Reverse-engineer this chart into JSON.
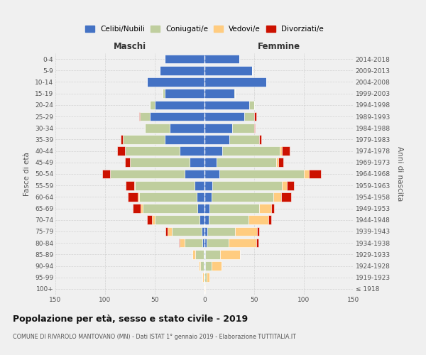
{
  "age_groups": [
    "100+",
    "95-99",
    "90-94",
    "85-89",
    "80-84",
    "75-79",
    "70-74",
    "65-69",
    "60-64",
    "55-59",
    "50-54",
    "45-49",
    "40-44",
    "35-39",
    "30-34",
    "25-29",
    "20-24",
    "15-19",
    "10-14",
    "5-9",
    "0-4"
  ],
  "birth_years": [
    "≤ 1918",
    "1919-1923",
    "1924-1928",
    "1929-1933",
    "1934-1938",
    "1939-1943",
    "1944-1948",
    "1949-1953",
    "1954-1958",
    "1959-1963",
    "1964-1968",
    "1969-1973",
    "1974-1978",
    "1979-1983",
    "1984-1988",
    "1989-1993",
    "1994-1998",
    "1999-2003",
    "2004-2008",
    "2009-2013",
    "2014-2018"
  ],
  "colors": {
    "celibe": "#4472C4",
    "coniugato": "#BFCE9E",
    "vedovo": "#FFCC80",
    "divorziato": "#CC1100"
  },
  "males": {
    "celibe": [
      0,
      0,
      1,
      1,
      2,
      3,
      5,
      7,
      8,
      10,
      20,
      15,
      25,
      40,
      35,
      55,
      50,
      40,
      58,
      45,
      40
    ],
    "coniugato": [
      0,
      1,
      3,
      8,
      18,
      30,
      45,
      55,
      58,
      60,
      75,
      60,
      55,
      42,
      25,
      10,
      5,
      2,
      0,
      0,
      0
    ],
    "vedovo": [
      0,
      1,
      2,
      3,
      5,
      4,
      3,
      2,
      1,
      1,
      0,
      0,
      0,
      0,
      0,
      0,
      0,
      0,
      0,
      0,
      0
    ],
    "divorziato": [
      0,
      0,
      0,
      0,
      1,
      2,
      5,
      8,
      10,
      8,
      8,
      5,
      8,
      2,
      0,
      1,
      0,
      0,
      0,
      0,
      0
    ]
  },
  "females": {
    "celibe": [
      0,
      0,
      1,
      1,
      2,
      3,
      4,
      5,
      7,
      8,
      15,
      12,
      18,
      25,
      28,
      40,
      45,
      30,
      62,
      48,
      35
    ],
    "coniugato": [
      0,
      2,
      6,
      15,
      22,
      28,
      40,
      50,
      62,
      70,
      85,
      60,
      58,
      30,
      22,
      10,
      5,
      1,
      0,
      0,
      0
    ],
    "vedovo": [
      1,
      3,
      10,
      20,
      28,
      22,
      20,
      12,
      8,
      5,
      5,
      2,
      2,
      0,
      0,
      0,
      0,
      0,
      0,
      0,
      0
    ],
    "divorziato": [
      0,
      0,
      0,
      0,
      2,
      2,
      3,
      3,
      10,
      7,
      12,
      5,
      8,
      2,
      1,
      2,
      0,
      0,
      0,
      0,
      0
    ]
  },
  "title": "Popolazione per età, sesso e stato civile - 2019",
  "subtitle": "COMUNE DI RIVAROLO MANTOVANO (MN) - Dati ISTAT 1° gennaio 2019 - Elaborazione TUTTITALIA.IT",
  "xlabel_left": "Maschi",
  "xlabel_right": "Femmine",
  "ylabel_left": "Fasce di età",
  "ylabel_right": "Anni di nascita",
  "legend_labels": [
    "Celibi/Nubili",
    "Coniugati/e",
    "Vedovi/e",
    "Divorziati/e"
  ],
  "xlim": 150,
  "background_color": "#f0f0f0",
  "grid_color": "#cccccc"
}
